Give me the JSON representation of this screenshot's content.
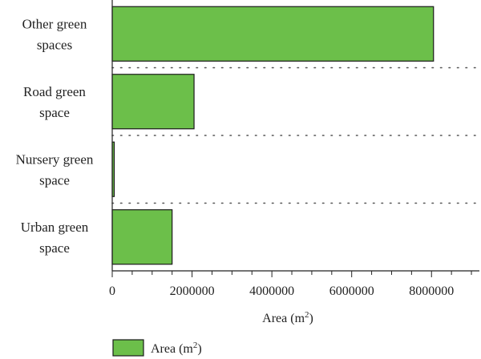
{
  "chart_data": {
    "type": "bar",
    "orientation": "horizontal",
    "categories": [
      [
        "Other green",
        "spaces"
      ],
      [
        "Road green",
        "space"
      ],
      [
        "Nursery green",
        "space"
      ],
      [
        "Urban green",
        "space"
      ]
    ],
    "series": [
      {
        "name": "Area (m2)",
        "values": [
          8050000,
          2050000,
          50000,
          1500000
        ]
      }
    ],
    "xlabel": "Area (m2)",
    "ylabel": "",
    "xlim": [
      0,
      9200000
    ],
    "xticks": [
      0,
      2000000,
      4000000,
      6000000,
      8000000
    ],
    "xtick_labels": [
      "0",
      "2000000",
      "4000000",
      "6000000",
      "8000000"
    ],
    "grid": "dotted separators between categories",
    "legend": "bottom-left",
    "colors": {
      "bar_fill": "#6cbf4a",
      "bar_stroke": "#1a1a1a",
      "axis": "#222222",
      "separator": "#555555"
    }
  }
}
